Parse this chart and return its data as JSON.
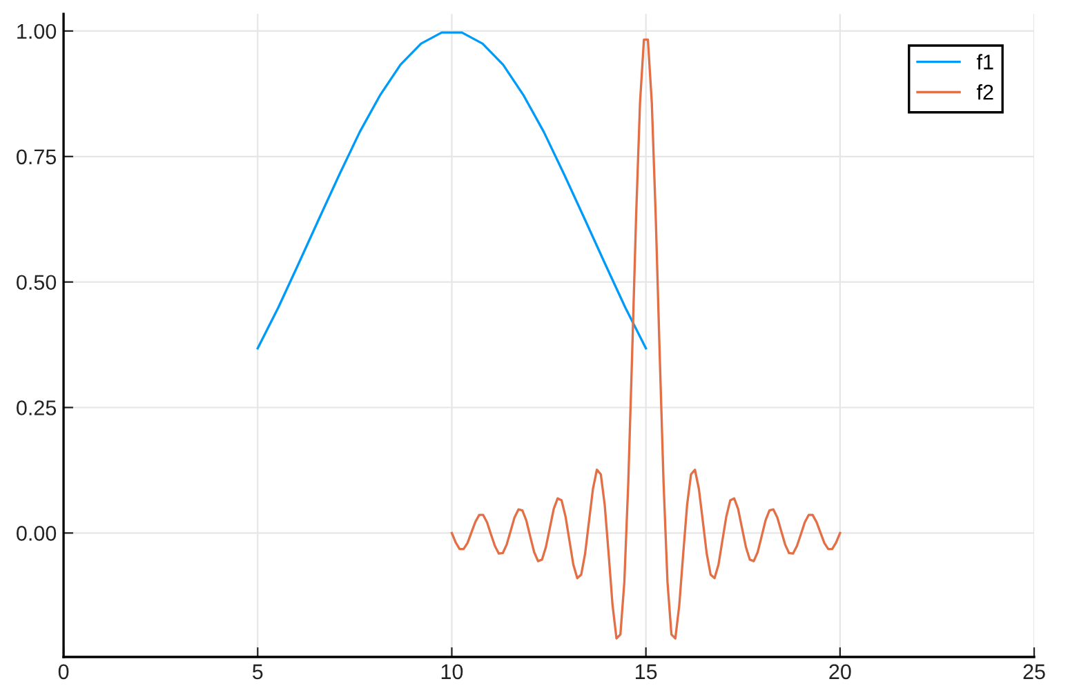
{
  "chart_data": {
    "type": "line",
    "xlim": [
      0,
      25
    ],
    "xticks": [
      0,
      5,
      10,
      15,
      20,
      25
    ],
    "ylim": [
      -0.247,
      1.034
    ],
    "yticks": [
      {
        "value": 0,
        "label": "0.00"
      },
      {
        "value": 0.25,
        "label": "0.25"
      },
      {
        "value": 0.5,
        "label": "0.50"
      },
      {
        "value": 0.75,
        "label": "0.75"
      },
      {
        "value": 1.0,
        "label": "1.00"
      }
    ],
    "grid": true,
    "legend": "top right",
    "marker": "none",
    "line_style": "solid",
    "series": [
      {
        "name": "f1",
        "color": "#009af9",
        "x": [
          5,
          5.53,
          6.05,
          6.58,
          7.11,
          7.63,
          8.16,
          8.68,
          9.21,
          9.74,
          10.26,
          10.79,
          11.32,
          11.84,
          12.37,
          12.89,
          13.42,
          13.95,
          14.47,
          15
        ],
        "values": [
          0.368,
          0.449,
          0.536,
          0.626,
          0.715,
          0.799,
          0.873,
          0.933,
          0.975,
          0.997,
          0.997,
          0.975,
          0.933,
          0.873,
          0.799,
          0.715,
          0.626,
          0.536,
          0.449,
          0.368
        ]
      },
      {
        "name": "f2",
        "color": "#e26f46",
        "x": [
          10,
          10.101,
          10.202,
          10.303,
          10.404,
          10.505,
          10.606,
          10.707,
          10.808,
          10.909,
          11.01,
          11.111,
          11.212,
          11.313,
          11.414,
          11.515,
          11.616,
          11.717,
          11.818,
          11.919,
          12.02,
          12.121,
          12.222,
          12.323,
          12.424,
          12.525,
          12.626,
          12.727,
          12.828,
          12.929,
          13.03,
          13.131,
          13.232,
          13.333,
          13.434,
          13.535,
          13.636,
          13.737,
          13.838,
          13.939,
          14.04,
          14.141,
          14.242,
          14.343,
          14.444,
          14.545,
          14.646,
          14.747,
          14.848,
          14.949,
          15.051,
          15.152,
          15.253,
          15.354,
          15.455,
          15.556,
          15.657,
          15.758,
          15.859,
          15.96,
          16.061,
          16.162,
          16.263,
          16.364,
          16.465,
          16.566,
          16.667,
          16.768,
          16.869,
          16.97,
          17.071,
          17.172,
          17.273,
          17.374,
          17.475,
          17.576,
          17.677,
          17.778,
          17.879,
          17.98,
          18.081,
          18.182,
          18.283,
          18.384,
          18.485,
          18.586,
          18.687,
          18.788,
          18.889,
          18.99,
          19.091,
          19.192,
          19.293,
          19.394,
          19.495,
          19.596,
          19.697,
          19.798,
          19.899,
          20
        ],
        "values": [
          0,
          -0.019,
          -0.032,
          -0.032,
          -0.02,
          0.001,
          0.022,
          0.036,
          0.036,
          0.021,
          -0.003,
          -0.026,
          -0.041,
          -0.04,
          -0.023,
          0.004,
          0.031,
          0.047,
          0.045,
          0.025,
          -0.007,
          -0.038,
          -0.056,
          -0.053,
          -0.028,
          0.01,
          0.048,
          0.069,
          0.065,
          0.033,
          -0.015,
          -0.063,
          -0.09,
          -0.083,
          -0.041,
          0.024,
          0.088,
          0.126,
          0.117,
          0.056,
          -0.042,
          -0.144,
          -0.21,
          -0.202,
          -0.098,
          0.099,
          0.358,
          0.63,
          0.857,
          0.983,
          0.983,
          0.857,
          0.63,
          0.358,
          0.099,
          -0.098,
          -0.202,
          -0.21,
          -0.144,
          -0.042,
          0.056,
          0.117,
          0.126,
          0.088,
          0.024,
          -0.041,
          -0.083,
          -0.09,
          -0.063,
          -0.015,
          0.033,
          0.065,
          0.069,
          0.048,
          0.01,
          -0.028,
          -0.053,
          -0.056,
          -0.038,
          -0.007,
          0.025,
          0.045,
          0.047,
          0.031,
          0.004,
          -0.023,
          -0.04,
          -0.041,
          -0.026,
          -0.003,
          0.021,
          0.036,
          0.036,
          0.022,
          0.001,
          -0.02,
          -0.032,
          -0.032,
          -0.019,
          0
        ]
      }
    ]
  }
}
